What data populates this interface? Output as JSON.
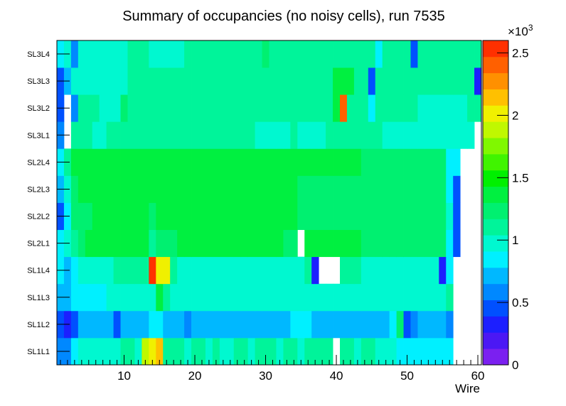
{
  "chart_data": {
    "type": "heatmap",
    "title": "Summary of occupancies (no noisy cells), run 7535",
    "xlabel": "Wire",
    "ylabel": "",
    "xlim": [
      0.5,
      60.5
    ],
    "x_ticks": [
      10,
      20,
      30,
      40,
      50,
      60
    ],
    "x_tick_labels": [
      "10",
      "20",
      "30",
      "40",
      "50",
      "60"
    ],
    "y_categories": [
      "SL1L1",
      "SL1L2",
      "SL1L3",
      "SL1L4",
      "SL2L1",
      "SL2L2",
      "SL2L3",
      "SL2L4",
      "SL3L1",
      "SL3L2",
      "SL3L3",
      "SL3L4"
    ],
    "colorbar": {
      "min": 0,
      "max": 2600,
      "exponent_label": "×10",
      "exponent_power": "3",
      "ticks": [
        0,
        500,
        1000,
        1500,
        2000,
        2500
      ],
      "tick_labels": [
        "0",
        "0.5",
        "1",
        "1.5",
        "2",
        "2.5"
      ],
      "colors": [
        "#7b20f0",
        "#4b18f4",
        "#1c1fff",
        "#0050ff",
        "#0088ff",
        "#00b8ff",
        "#00f0ff",
        "#00f8d0",
        "#00f49a",
        "#00f070",
        "#00f040",
        "#00f000",
        "#40f400",
        "#80f800",
        "#c0f800",
        "#f0f000",
        "#ffc000",
        "#ff9000",
        "#ff6000",
        "#ff3000"
      ]
    },
    "series": [
      {
        "name": "SL1L1",
        "values": [
          600,
          600,
          800,
          1000,
          1000,
          1000,
          1000,
          1000,
          1000,
          1100,
          1100,
          1000,
          1900,
          2000,
          2100,
          1100,
          1100,
          1100,
          1000,
          1100,
          1100,
          1000,
          1100,
          1000,
          1000,
          1100,
          1100,
          1000,
          1100,
          1100,
          1100,
          1000,
          1100,
          1100,
          1000,
          1100,
          1100,
          1100,
          1100,
          null,
          1100,
          1100,
          1000,
          1100,
          1100,
          1000,
          1000,
          1000,
          900,
          900,
          900,
          900,
          900,
          900,
          900,
          900,
          null,
          null,
          null,
          null
        ]
      },
      {
        "name": "SL1L2",
        "values": [
          500,
          300,
          500,
          700,
          700,
          700,
          700,
          700,
          500,
          700,
          700,
          700,
          700,
          900,
          900,
          700,
          700,
          700,
          600,
          700,
          700,
          700,
          700,
          700,
          700,
          700,
          700,
          700,
          700,
          700,
          700,
          700,
          700,
          900,
          900,
          900,
          700,
          700,
          700,
          700,
          700,
          700,
          700,
          700,
          700,
          700,
          700,
          800,
          1200,
          400,
          600,
          700,
          700,
          700,
          700,
          600,
          null,
          null,
          null,
          null
        ]
      },
      {
        "name": "SL1L3",
        "values": [
          700,
          700,
          900,
          900,
          900,
          900,
          900,
          1000,
          1000,
          1000,
          1000,
          1000,
          1000,
          1000,
          1400,
          1100,
          1000,
          1000,
          1000,
          1000,
          1000,
          1000,
          1000,
          1000,
          1000,
          1000,
          1000,
          1000,
          1000,
          1000,
          1000,
          1000,
          1000,
          1000,
          1000,
          1000,
          1000,
          1000,
          1000,
          1000,
          1000,
          1000,
          1000,
          1000,
          1000,
          1000,
          1000,
          1000,
          1000,
          1000,
          1000,
          1000,
          1000,
          1000,
          1000,
          1100,
          null,
          null,
          null,
          null
        ]
      },
      {
        "name": "SL1L4",
        "values": [
          800,
          700,
          900,
          1000,
          1000,
          950,
          950,
          950,
          1100,
          1100,
          1100,
          1100,
          1100,
          2700,
          2000,
          2000,
          1100,
          1000,
          1000,
          1000,
          1000,
          1000,
          1000,
          1000,
          1000,
          1000,
          1000,
          1000,
          1000,
          1000,
          1000,
          1000,
          1000,
          1000,
          1000,
          1100,
          300,
          null,
          null,
          null,
          1100,
          1100,
          1100,
          1000,
          1000,
          1000,
          1000,
          1000,
          1000,
          1000,
          1000,
          1000,
          1000,
          1000,
          300,
          800,
          null,
          null,
          null,
          null
        ]
      },
      {
        "name": "SL2L1",
        "values": [
          900,
          1000,
          1100,
          1200,
          1300,
          1300,
          1300,
          1300,
          1300,
          1300,
          1300,
          1300,
          1300,
          1100,
          1200,
          1200,
          1200,
          1300,
          1300,
          1300,
          1300,
          1300,
          1300,
          1300,
          1300,
          1300,
          1300,
          1300,
          1300,
          1300,
          1300,
          1300,
          1200,
          1200,
          null,
          1300,
          1300,
          1300,
          1300,
          1300,
          1300,
          1300,
          1300,
          1200,
          1200,
          1200,
          1200,
          1200,
          1200,
          1200,
          1200,
          1200,
          1200,
          1200,
          1200,
          900,
          500,
          null,
          null,
          null
        ]
      },
      {
        "name": "SL2L2",
        "values": [
          500,
          800,
          1200,
          1200,
          1200,
          1300,
          1400,
          1400,
          1400,
          1400,
          1400,
          1400,
          1300,
          1200,
          1300,
          1400,
          1400,
          1400,
          1400,
          1400,
          1400,
          1400,
          1400,
          1400,
          1400,
          1400,
          1400,
          1400,
          1400,
          1400,
          1400,
          1300,
          1300,
          1300,
          1200,
          1200,
          1200,
          1200,
          1200,
          1200,
          1200,
          1200,
          1200,
          1200,
          1200,
          1200,
          1200,
          1200,
          1200,
          1200,
          1200,
          1200,
          1200,
          1200,
          1200,
          1000,
          400,
          null,
          null,
          null
        ]
      },
      {
        "name": "SL2L3",
        "values": [
          700,
          1000,
          1200,
          1400,
          1300,
          1400,
          1400,
          1300,
          1300,
          1300,
          1300,
          1300,
          1400,
          1400,
          1400,
          1400,
          1400,
          1400,
          1300,
          1400,
          1400,
          1400,
          1400,
          1400,
          1400,
          1400,
          1400,
          1400,
          1400,
          1400,
          1300,
          1300,
          1300,
          1300,
          1200,
          1200,
          1200,
          1200,
          1200,
          1200,
          1200,
          1200,
          1200,
          1200,
          1200,
          1200,
          1200,
          1200,
          1200,
          1200,
          1200,
          1200,
          1200,
          1200,
          1200,
          900,
          500,
          null,
          null,
          null
        ]
      },
      {
        "name": "SL2L4",
        "values": [
          900,
          1100,
          1300,
          1400,
          1400,
          1400,
          1400,
          1400,
          1400,
          1400,
          1400,
          1400,
          1300,
          1400,
          1400,
          1400,
          1400,
          1400,
          1400,
          1400,
          1400,
          1400,
          1400,
          1400,
          1400,
          1300,
          1300,
          1300,
          1300,
          1300,
          1300,
          1300,
          1300,
          1300,
          1300,
          1300,
          1300,
          1300,
          1300,
          1300,
          1300,
          1300,
          1300,
          1200,
          1200,
          1200,
          1200,
          1200,
          1200,
          1200,
          1200,
          1200,
          1200,
          1200,
          1200,
          900,
          800,
          null,
          null,
          null
        ]
      },
      {
        "name": "SL3L1",
        "values": [
          600,
          null,
          1100,
          1100,
          1100,
          1000,
          1000,
          1100,
          1100,
          1100,
          1100,
          1100,
          1100,
          1100,
          1100,
          1100,
          1100,
          1100,
          1100,
          1100,
          1100,
          1100,
          1100,
          1100,
          1100,
          1100,
          1100,
          1100,
          1000,
          1000,
          1000,
          1000,
          1000,
          1100,
          1000,
          1000,
          1000,
          1000,
          1100,
          1100,
          1100,
          1100,
          1100,
          1100,
          1100,
          1100,
          1000,
          1000,
          1000,
          1000,
          1000,
          1000,
          1000,
          1000,
          1000,
          1000,
          1000,
          1000,
          1000,
          null
        ]
      },
      {
        "name": "SL3L2",
        "values": [
          400,
          null,
          600,
          1100,
          1100,
          1100,
          1000,
          1000,
          1000,
          1200,
          1100,
          1100,
          1100,
          1100,
          1100,
          1100,
          1100,
          1100,
          1100,
          1100,
          1100,
          1100,
          1100,
          1100,
          1100,
          1100,
          1100,
          1100,
          1100,
          1100,
          1100,
          1100,
          1100,
          1100,
          1100,
          1100,
          1100,
          1100,
          1100,
          1300,
          2400,
          1100,
          1100,
          1100,
          900,
          1100,
          1100,
          1100,
          1100,
          1100,
          1100,
          1000,
          1000,
          1000,
          1000,
          1000,
          1000,
          1000,
          1100,
          1100
        ]
      },
      {
        "name": "SL3L3",
        "values": [
          400,
          700,
          1000,
          1000,
          1000,
          1000,
          1000,
          1000,
          1000,
          1000,
          1100,
          1100,
          1100,
          1100,
          1100,
          1100,
          1100,
          1100,
          1100,
          1100,
          1100,
          1100,
          1100,
          1100,
          1100,
          1100,
          1100,
          1100,
          1100,
          1100,
          1100,
          1100,
          1100,
          1100,
          1100,
          1100,
          1100,
          1100,
          1100,
          1300,
          1300,
          1300,
          1100,
          1100,
          400,
          1100,
          1100,
          1100,
          1100,
          1100,
          1100,
          1100,
          1100,
          1100,
          1100,
          1100,
          1100,
          1100,
          1100,
          300
        ]
      },
      {
        "name": "SL3L4",
        "values": [
          900,
          1000,
          600,
          1000,
          1000,
          1000,
          1000,
          1000,
          1000,
          1000,
          1100,
          1100,
          1100,
          1000,
          1000,
          1000,
          1000,
          1000,
          1100,
          1100,
          1100,
          1100,
          1100,
          1100,
          1100,
          1100,
          1100,
          1100,
          1100,
          1200,
          1100,
          1100,
          1100,
          1100,
          1100,
          1100,
          1100,
          1100,
          1100,
          1100,
          1100,
          1100,
          1100,
          1100,
          1100,
          900,
          1100,
          1100,
          1100,
          1100,
          400,
          1100,
          1100,
          1100,
          1100,
          1100,
          1100,
          1100,
          1100,
          1100
        ]
      }
    ]
  }
}
